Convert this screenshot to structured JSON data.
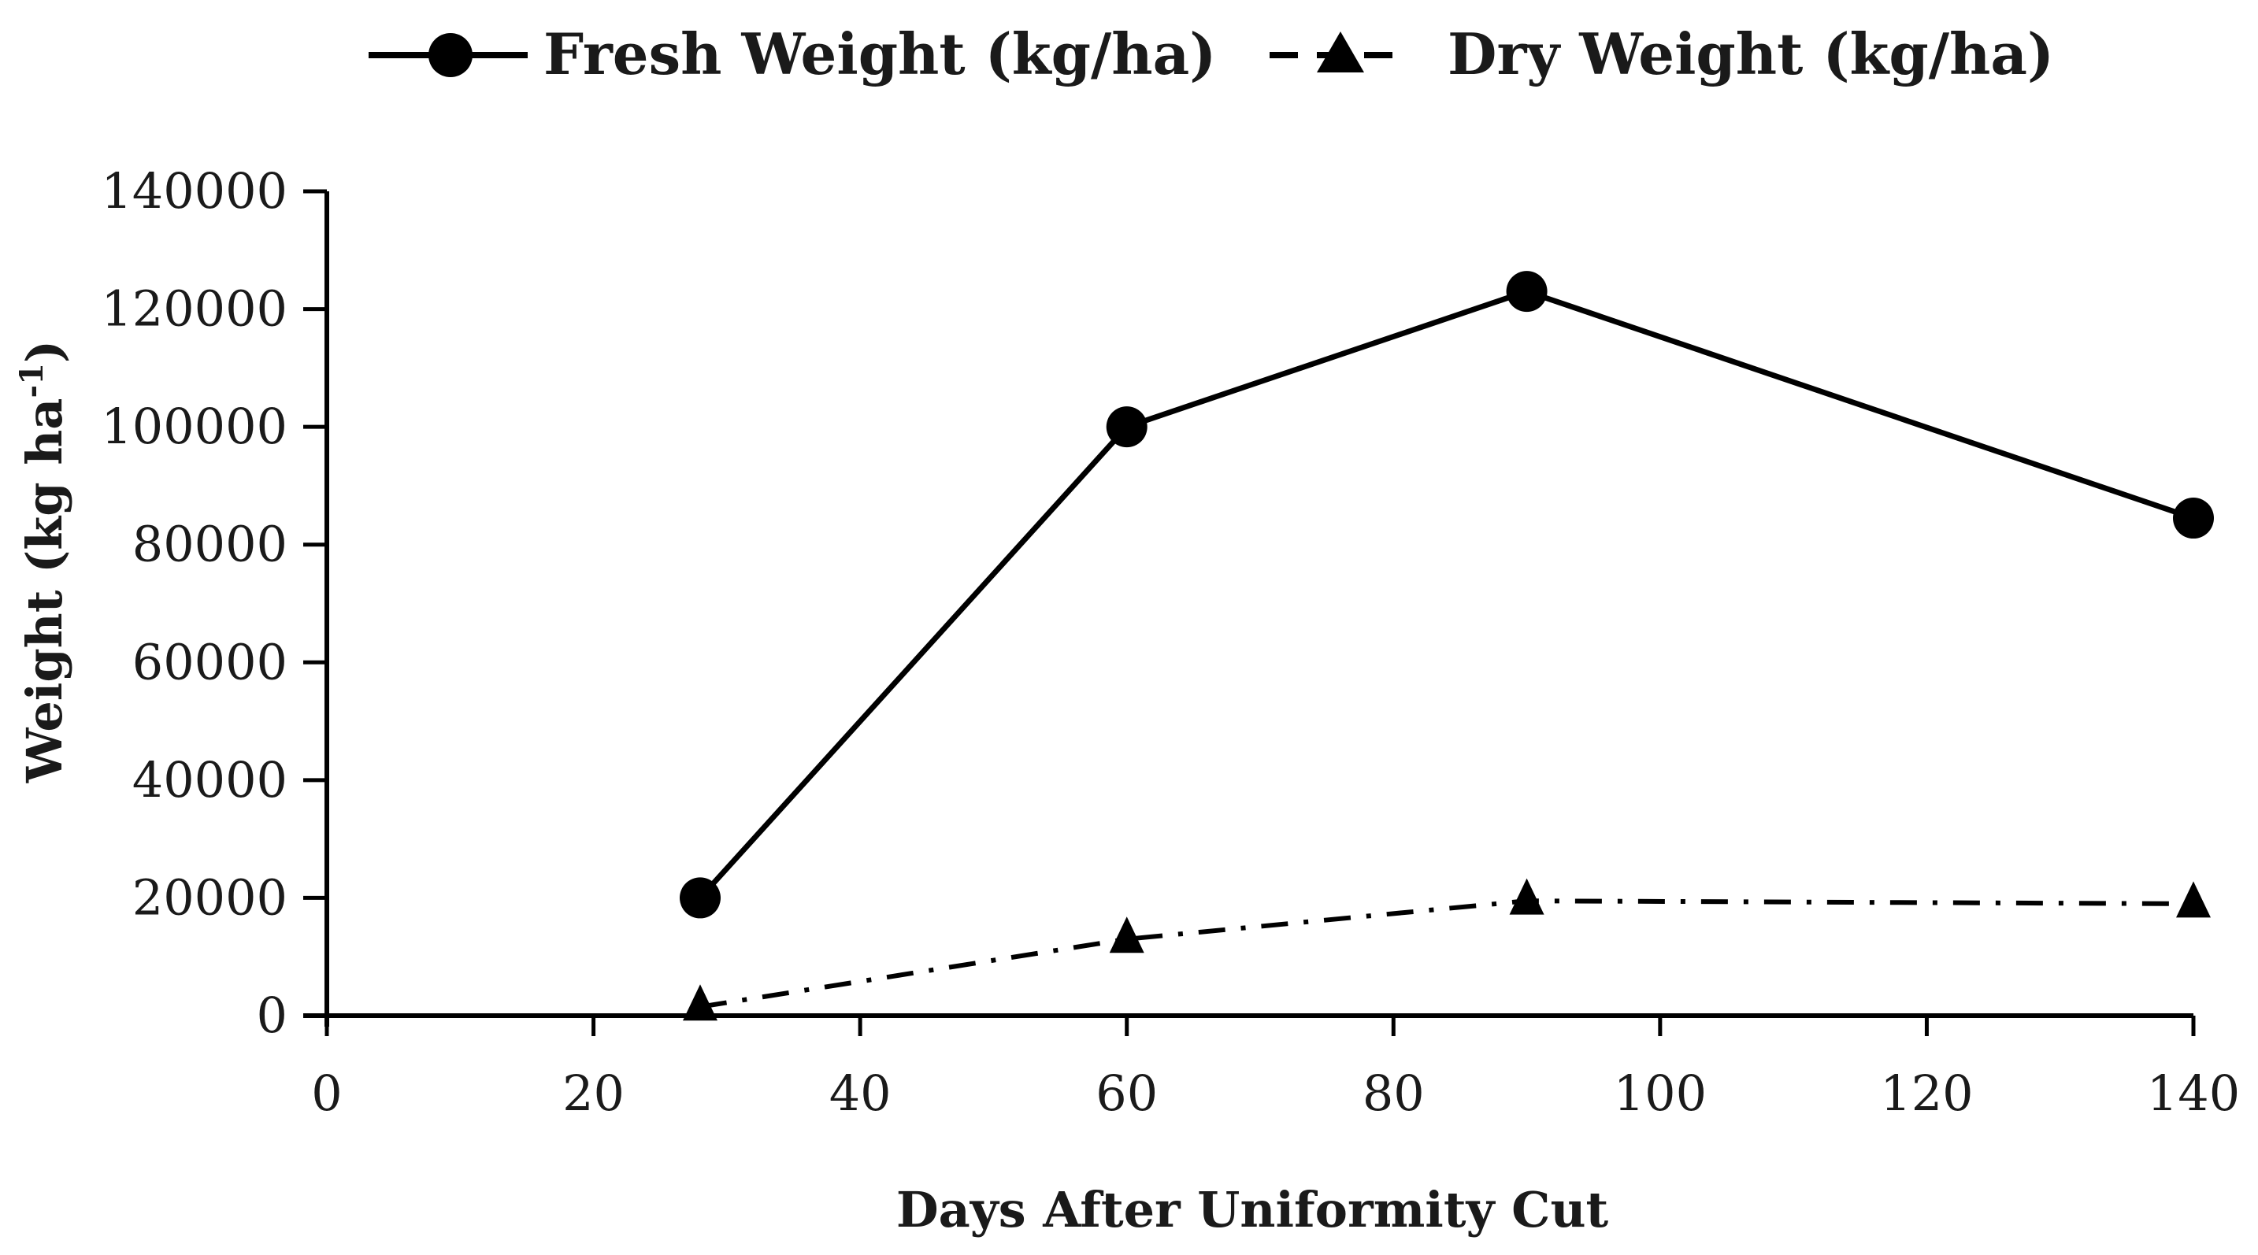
{
  "chart_data": {
    "type": "line",
    "title": "",
    "xlabel": "Days After Uniformity Cut",
    "ylabel_main": "Weight (kg ha",
    "ylabel_sup": "-1",
    "ylabel_close": ")",
    "xlim": [
      0,
      140
    ],
    "ylim": [
      0,
      140000
    ],
    "xticks": [
      0,
      20,
      40,
      60,
      80,
      100,
      120,
      140
    ],
    "yticks": [
      0,
      20000,
      40000,
      60000,
      80000,
      100000,
      120000,
      140000
    ],
    "xtick_labels": [
      "0",
      "20",
      "40",
      "60",
      "80",
      "100",
      "120",
      "140"
    ],
    "ytick_labels": [
      "0",
      "20000",
      "40000",
      "60000",
      "80000",
      "100000",
      "120000",
      "140000"
    ],
    "grid": false,
    "legend_position": "top",
    "series": [
      {
        "name": "Fresh Weight (kg/ha)",
        "marker": "circle",
        "line_style": "solid",
        "color": "#000000",
        "x": [
          28,
          60,
          90,
          140
        ],
        "y": [
          20000,
          100000,
          123000,
          84500
        ]
      },
      {
        "name": "Dry Weight (kg/ha)",
        "marker": "triangle",
        "line_style": "dashdot",
        "color": "#000000",
        "x": [
          28,
          60,
          90,
          140
        ],
        "y": [
          1500,
          13000,
          19500,
          19000
        ]
      }
    ]
  }
}
